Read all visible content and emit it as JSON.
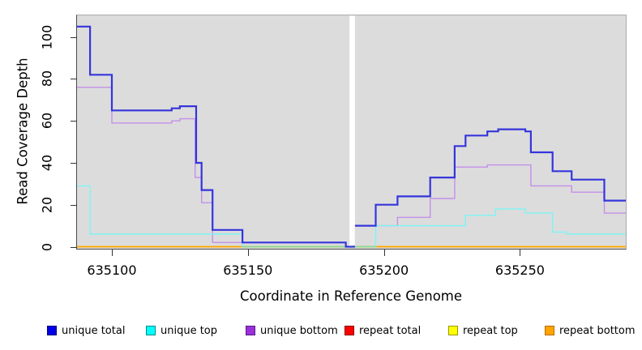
{
  "figure": {
    "background": "#ffffff",
    "plot_background": "#dcdcdc"
  },
  "chart_data": {
    "type": "line",
    "subtype": "step-coverage",
    "title": "",
    "xlabel": "Coordinate in Reference Genome",
    "ylabel": "Read Coverage Depth",
    "xlim": [
      635087.2,
      635288.9
    ],
    "ylim": [
      0,
      105
    ],
    "x_ticks": [
      635100,
      635150,
      635200,
      635250
    ],
    "y_ticks": [
      0,
      20,
      40,
      60,
      80,
      100
    ],
    "grid": false,
    "legend_position": "bottom",
    "no_data_gap": {
      "from": 635187.35,
      "to": 635189.35
    },
    "zero_level_blend_segment": {
      "from": 635148,
      "to": 635197,
      "value": 0,
      "color": "#8bd78f"
    },
    "series": [
      {
        "name": "unique total",
        "legend_fill": "#0000e6",
        "legend_border": "#000080",
        "line_color": "#3535dc",
        "line_width": 2.2,
        "steps": [
          [
            635087.2,
            105
          ],
          [
            635092,
            82
          ],
          [
            635100,
            65
          ],
          [
            635122,
            66
          ],
          [
            635125,
            67
          ],
          [
            635131,
            40
          ],
          [
            635133,
            27
          ],
          [
            635137,
            8
          ],
          [
            635148,
            2
          ],
          [
            635186,
            0
          ],
          [
            635189,
            10
          ],
          [
            635197,
            20
          ],
          [
            635205,
            24
          ],
          [
            635217,
            33
          ],
          [
            635226,
            48
          ],
          [
            635230,
            53
          ],
          [
            635238,
            55
          ],
          [
            635242,
            56
          ],
          [
            635252,
            55
          ],
          [
            635254,
            45
          ],
          [
            635262,
            36
          ],
          [
            635269,
            32
          ],
          [
            635281,
            22
          ],
          [
            635288.9,
            22
          ]
        ]
      },
      {
        "name": "unique top",
        "legend_fill": "#00ffff",
        "legend_border": "#008b8b",
        "line_color": "#7ef4f4",
        "line_width": 1.4,
        "steps": [
          [
            635087.2,
            29
          ],
          [
            635092,
            6
          ],
          [
            635148,
            0
          ],
          [
            635197,
            10
          ],
          [
            635230,
            15
          ],
          [
            635241,
            18
          ],
          [
            635252,
            16
          ],
          [
            635262,
            7
          ],
          [
            635267,
            6
          ],
          [
            635288.9,
            6
          ]
        ]
      },
      {
        "name": "unique bottom",
        "legend_fill": "#9b30d9",
        "legend_border": "#551a8b",
        "line_color": "#c48fe8",
        "line_width": 1.4,
        "steps": [
          [
            635087.2,
            76
          ],
          [
            635100,
            59
          ],
          [
            635122,
            60
          ],
          [
            635125,
            61
          ],
          [
            635130.6,
            33
          ],
          [
            635133,
            21
          ],
          [
            635137,
            2
          ],
          [
            635186,
            0
          ],
          [
            635189,
            10
          ],
          [
            635205,
            14
          ],
          [
            635217,
            23
          ],
          [
            635226,
            38
          ],
          [
            635238,
            39
          ],
          [
            635254,
            29
          ],
          [
            635269,
            26
          ],
          [
            635281,
            16
          ],
          [
            635288.9,
            16
          ]
        ]
      },
      {
        "name": "repeat total",
        "legend_fill": "#ff0000",
        "legend_border": "#8b0000",
        "line_color": "#e02020",
        "line_width": 1.4,
        "steps": [
          [
            635087.2,
            0
          ],
          [
            635288.9,
            0
          ]
        ]
      },
      {
        "name": "repeat top",
        "legend_fill": "#ffff00",
        "legend_border": "#9a9a00",
        "line_color": "#ffff00",
        "line_width": 1.4,
        "steps": [
          [
            635087.2,
            0
          ],
          [
            635288.9,
            0
          ]
        ]
      },
      {
        "name": "repeat bottom",
        "legend_fill": "#ffa500",
        "legend_border": "#b86b00",
        "line_color": "#ffa500",
        "line_width": 1.6,
        "steps": [
          [
            635087.2,
            0
          ],
          [
            635288.9,
            0
          ]
        ]
      }
    ]
  }
}
